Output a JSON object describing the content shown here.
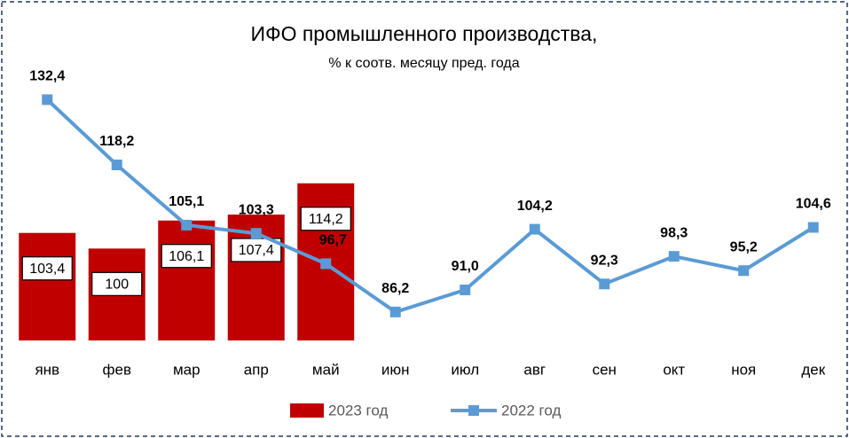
{
  "chart_data": {
    "type": "bar",
    "title": "ИФО промышленного  производства,",
    "subtitle": "% к соотв. месяцу пред. года",
    "categories": [
      "янв",
      "фев",
      "мар",
      "апр",
      "май",
      "июн",
      "июл",
      "авг",
      "сен",
      "окт",
      "ноя",
      "дек"
    ],
    "ylim": [
      80,
      140
    ],
    "series": [
      {
        "name": "2023 год",
        "type": "bar",
        "color": "#c00000",
        "values": [
          103.4,
          100,
          106.1,
          107.4,
          114.2,
          null,
          null,
          null,
          null,
          null,
          null,
          null
        ],
        "value_labels": [
          "103,4",
          "100",
          "106,1",
          "107,4",
          "114,2",
          null,
          null,
          null,
          null,
          null,
          null,
          null
        ]
      },
      {
        "name": "2022 год",
        "type": "line",
        "color": "#5b9bd5",
        "values": [
          132.4,
          118.2,
          105.1,
          103.3,
          96.7,
          86.2,
          91.0,
          104.2,
          92.3,
          98.3,
          95.2,
          104.6
        ],
        "value_labels": [
          "132,4",
          "118,2",
          "105,1",
          "103,3",
          "96,7",
          "86,2",
          "91,0",
          "104,2",
          "92,3",
          "98,3",
          "95,2",
          "104,6"
        ]
      }
    ]
  }
}
